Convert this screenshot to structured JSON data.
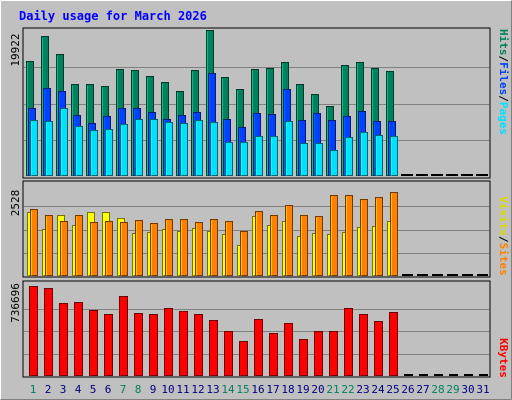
{
  "title": "Daily usage for March 2026",
  "colors": {
    "title": "#0000ff",
    "hits": "#00805c",
    "files": "#0040ff",
    "pages": "#00e0ff",
    "visits": "#ffff00",
    "sites": "#ff8000",
    "kbytes": "#ff0000",
    "weekday_label": "#000080",
    "weekend_label": "#00805c",
    "panel_bg": "#c0c0c0",
    "frame_bg": "#c0c0c0"
  },
  "chart_data": [
    {
      "type": "bar",
      "name": "hits-files-pages",
      "categories": [
        "1",
        "2",
        "3",
        "4",
        "5",
        "6",
        "7",
        "8",
        "9",
        "10",
        "11",
        "12",
        "13",
        "14",
        "15",
        "16",
        "17",
        "18",
        "19",
        "20",
        "21",
        "22",
        "23",
        "24",
        "25",
        "26",
        "27",
        "28",
        "29",
        "30",
        "31"
      ],
      "weekend_days": [
        "1",
        "7",
        "8",
        "14",
        "15",
        "21",
        "22",
        "28",
        "29"
      ],
      "ymax_label": "19922",
      "ylim": [
        0,
        19922
      ],
      "legend": {
        "pages": "Pages",
        "files": "Files",
        "hits": "Hits",
        "sep": "/"
      },
      "series": [
        {
          "name": "Hits",
          "key": "hits",
          "values": [
            15800,
            19300,
            16700,
            12700,
            12700,
            12300,
            14700,
            14500,
            13700,
            12900,
            11700,
            14600,
            20000,
            13600,
            11900,
            14700,
            14900,
            15600,
            12600,
            11300,
            9600,
            15300,
            15700,
            14800,
            14400,
            0,
            0,
            0,
            0,
            0,
            0
          ]
        },
        {
          "name": "Files",
          "key": "files",
          "values": [
            9400,
            12100,
            11700,
            8400,
            7300,
            8300,
            9300,
            9300,
            8800,
            7900,
            8400,
            8800,
            14100,
            7800,
            6800,
            8700,
            8500,
            11900,
            7700,
            8600,
            7700,
            8300,
            8900,
            7500,
            7500,
            0,
            0,
            0,
            0,
            0,
            0
          ]
        },
        {
          "name": "Pages",
          "key": "pages",
          "values": [
            7700,
            7600,
            9300,
            6900,
            6300,
            6400,
            7100,
            7900,
            7800,
            7400,
            7300,
            7700,
            7400,
            4700,
            4700,
            5500,
            5500,
            7500,
            4500,
            4600,
            3600,
            5300,
            6100,
            5600,
            5500,
            0,
            0,
            0,
            0,
            0,
            0
          ]
        }
      ]
    },
    {
      "type": "bar",
      "name": "visits-sites",
      "categories": [
        "1",
        "2",
        "3",
        "4",
        "5",
        "6",
        "7",
        "8",
        "9",
        "10",
        "11",
        "12",
        "13",
        "14",
        "15",
        "16",
        "17",
        "18",
        "19",
        "20",
        "21",
        "22",
        "23",
        "24",
        "25",
        "26",
        "27",
        "28",
        "29",
        "30",
        "31"
      ],
      "ymax_label": "2528",
      "ylim": [
        0,
        2528
      ],
      "legend": {
        "sites": "Sites",
        "visits": "Visits",
        "sep": "/"
      },
      "series": [
        {
          "name": "Visits",
          "key": "visits",
          "values": [
            1730,
            1280,
            1650,
            1380,
            1730,
            1750,
            1580,
            1180,
            1200,
            1280,
            1230,
            1300,
            1230,
            1140,
            850,
            1630,
            1380,
            1500,
            1100,
            1160,
            1150,
            1200,
            1320,
            1350,
            1500,
            0,
            0,
            0,
            0,
            0,
            0
          ]
        },
        {
          "name": "Sites",
          "key": "sites",
          "values": [
            1820,
            1650,
            1490,
            1650,
            1470,
            1500,
            1470,
            1520,
            1430,
            1550,
            1540,
            1460,
            1550,
            1500,
            1220,
            1760,
            1670,
            1920,
            1650,
            1620,
            2200,
            2200,
            2080,
            2150,
            2290,
            0,
            0,
            0,
            0,
            0,
            0
          ]
        }
      ]
    },
    {
      "type": "bar",
      "name": "kbytes",
      "categories": [
        "1",
        "2",
        "3",
        "4",
        "5",
        "6",
        "7",
        "8",
        "9",
        "10",
        "11",
        "12",
        "13",
        "14",
        "15",
        "16",
        "17",
        "18",
        "19",
        "20",
        "21",
        "22",
        "23",
        "24",
        "25",
        "26",
        "27",
        "28",
        "29",
        "30",
        "31"
      ],
      "ymax_label": "736696",
      "ylim": [
        0,
        736696
      ],
      "legend": {
        "kbytes": "KBytes"
      },
      "series": [
        {
          "name": "KBytes",
          "key": "kbytes",
          "values": [
            735000,
            724000,
            599000,
            603000,
            537000,
            505000,
            652000,
            518000,
            511000,
            554000,
            530000,
            504000,
            455000,
            370000,
            288000,
            466000,
            348000,
            436000,
            306000,
            365000,
            369000,
            560000,
            506000,
            450000,
            520000,
            0,
            0,
            0,
            0,
            0,
            0
          ]
        }
      ]
    }
  ]
}
